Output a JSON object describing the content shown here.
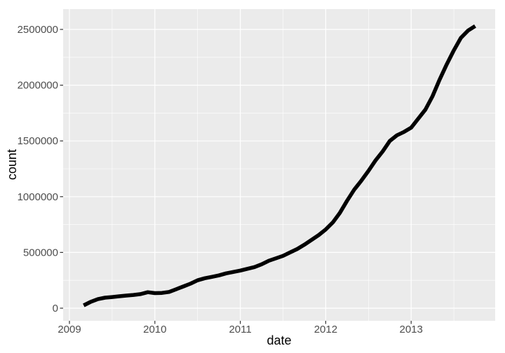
{
  "chart_data": {
    "type": "line",
    "title": "",
    "xlabel": "date",
    "ylabel": "count",
    "legend": "none",
    "grid": "major and minor gridlines, white on grey panel",
    "panel_x_range_years": [
      2008.93,
      2013.99
    ],
    "ylim": [
      -113000,
      2682000
    ],
    "x_ticks": [
      {
        "year": 2009,
        "label": "2009"
      },
      {
        "year": 2010,
        "label": "2010"
      },
      {
        "year": 2011,
        "label": "2011"
      },
      {
        "year": 2012,
        "label": "2012"
      },
      {
        "year": 2013,
        "label": "2013"
      }
    ],
    "y_ticks": [
      {
        "value": 0,
        "label": "0"
      },
      {
        "value": 500000,
        "label": "500000"
      },
      {
        "value": 1000000,
        "label": "1000000"
      },
      {
        "value": 1500000,
        "label": "1500000"
      },
      {
        "value": 2000000,
        "label": "2000000"
      },
      {
        "value": 2500000,
        "label": "2500000"
      }
    ],
    "series": [
      {
        "name": "count",
        "points": [
          [
            "2009-03",
            25000
          ],
          [
            "2009-04",
            57000
          ],
          [
            "2009-05",
            81000
          ],
          [
            "2009-06",
            94000
          ],
          [
            "2009-07",
            100000
          ],
          [
            "2009-08",
            107000
          ],
          [
            "2009-09",
            113000
          ],
          [
            "2009-10",
            119000
          ],
          [
            "2009-11",
            126000
          ],
          [
            "2009-12",
            143000
          ],
          [
            "2010-01",
            135000
          ],
          [
            "2010-02",
            137000
          ],
          [
            "2010-03",
            146000
          ],
          [
            "2010-04",
            170000
          ],
          [
            "2010-05",
            195000
          ],
          [
            "2010-06",
            220000
          ],
          [
            "2010-07",
            250000
          ],
          [
            "2010-08",
            268000
          ],
          [
            "2010-09",
            281000
          ],
          [
            "2010-10",
            294000
          ],
          [
            "2010-11",
            312000
          ],
          [
            "2010-12",
            325000
          ],
          [
            "2011-01",
            337000
          ],
          [
            "2011-02",
            353000
          ],
          [
            "2011-03",
            369000
          ],
          [
            "2011-04",
            394000
          ],
          [
            "2011-05",
            425000
          ],
          [
            "2011-06",
            447000
          ],
          [
            "2011-07",
            469000
          ],
          [
            "2011-08",
            500000
          ],
          [
            "2011-09",
            531000
          ],
          [
            "2011-10",
            569000
          ],
          [
            "2011-11",
            612000
          ],
          [
            "2011-12",
            655000
          ],
          [
            "2012-01",
            706000
          ],
          [
            "2012-02",
            769000
          ],
          [
            "2012-03",
            856000
          ],
          [
            "2012-04",
            963000
          ],
          [
            "2012-05",
            1063000
          ],
          [
            "2012-06",
            1144000
          ],
          [
            "2012-07",
            1231000
          ],
          [
            "2012-08",
            1325000
          ],
          [
            "2012-09",
            1406000
          ],
          [
            "2012-10",
            1500000
          ],
          [
            "2012-11",
            1550000
          ],
          [
            "2012-12",
            1581000
          ],
          [
            "2013-01",
            1619000
          ],
          [
            "2013-02",
            1700000
          ],
          [
            "2013-03",
            1781000
          ],
          [
            "2013-04",
            1900000
          ],
          [
            "2013-05",
            2050000
          ],
          [
            "2013-06",
            2188000
          ],
          [
            "2013-07",
            2313000
          ],
          [
            "2013-08",
            2425000
          ],
          [
            "2013-09",
            2490000
          ],
          [
            "2013-10",
            2530000
          ]
        ]
      }
    ]
  },
  "style": {
    "background": "#FFFFFF",
    "panel_bg": "#EBEBEB",
    "grid_color": "#FFFFFF",
    "line_color": "#000000",
    "axis_text_color": "#4D4D4D",
    "tick_mark_color": "#333333",
    "axis_title_color": "#000000"
  }
}
